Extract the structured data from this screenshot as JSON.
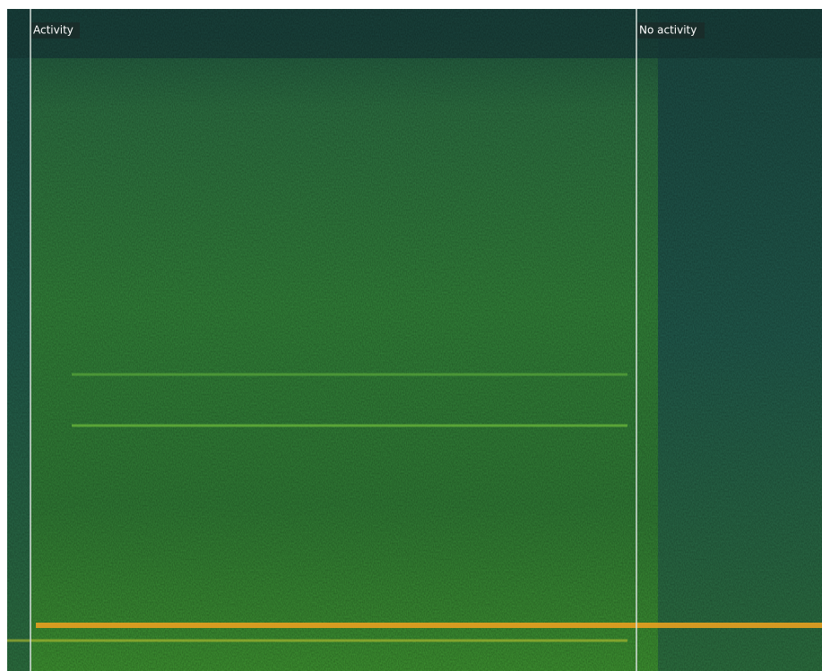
{
  "markers": [
    {
      "label": "Activity"
    },
    {
      "label": "No activity"
    }
  ]
}
